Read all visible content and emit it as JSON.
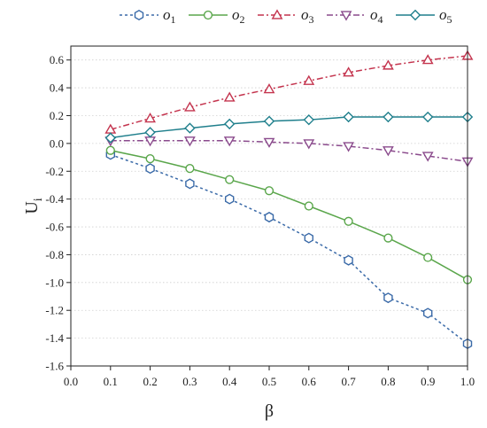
{
  "chart_data": {
    "type": "line",
    "xlabel": "β",
    "ylabel": "U",
    "ylabel_sub": "i",
    "xlim": [
      0.0,
      1.0
    ],
    "ylim": [
      -1.6,
      0.7
    ],
    "xticks": [
      0.0,
      0.1,
      0.2,
      0.3,
      0.4,
      0.5,
      0.6,
      0.7,
      0.8,
      0.9,
      1.0
    ],
    "yticks": [
      -1.6,
      -1.4,
      -1.2,
      -1.0,
      -0.8,
      -0.6,
      -0.4,
      -0.2,
      0.0,
      0.2,
      0.4,
      0.6
    ],
    "xtick_labels": [
      "0.0",
      "0.1",
      "0.2",
      "0.3",
      "0.4",
      "0.5",
      "0.6",
      "0.7",
      "0.8",
      "0.9",
      "1.0"
    ],
    "ytick_labels": [
      "-1.6",
      "-1.4",
      "-1.2",
      "-1.0",
      "-0.8",
      "-0.6",
      "-0.4",
      "-0.2",
      "0.0",
      "0.2",
      "0.4",
      "0.6"
    ],
    "grid": "horizontal dotted",
    "legend_position": "top",
    "x": [
      0.1,
      0.2,
      0.3,
      0.4,
      0.5,
      0.6,
      0.7,
      0.8,
      0.9,
      1.0
    ],
    "series": [
      {
        "name": "o",
        "name_sub": "1",
        "color": "#3a6aa8",
        "marker": "hexagon",
        "line": "dotted",
        "values": [
          -0.08,
          -0.18,
          -0.29,
          -0.4,
          -0.53,
          -0.68,
          -0.84,
          -1.11,
          -1.22,
          -1.44
        ]
      },
      {
        "name": "o",
        "name_sub": "2",
        "color": "#5aa64b",
        "marker": "circle",
        "line": "solid",
        "values": [
          -0.05,
          -0.11,
          -0.18,
          -0.26,
          -0.34,
          -0.45,
          -0.56,
          -0.68,
          -0.82,
          -0.98
        ]
      },
      {
        "name": "o",
        "name_sub": "3",
        "color": "#c4344e",
        "marker": "triangle-up",
        "line": "dashdot",
        "values": [
          0.1,
          0.18,
          0.26,
          0.33,
          0.39,
          0.45,
          0.51,
          0.56,
          0.6,
          0.63
        ]
      },
      {
        "name": "o",
        "name_sub": "4",
        "color": "#8a4a8c",
        "marker": "triangle-down",
        "line": "dashdot",
        "values": [
          0.02,
          0.02,
          0.02,
          0.02,
          0.01,
          0.0,
          -0.02,
          -0.05,
          -0.09,
          -0.13
        ]
      },
      {
        "name": "o",
        "name_sub": "5",
        "color": "#1f7f8c",
        "marker": "diamond",
        "line": "solid",
        "values": [
          0.04,
          0.08,
          0.11,
          0.14,
          0.16,
          0.17,
          0.19,
          0.19,
          0.19,
          0.19
        ]
      }
    ]
  }
}
